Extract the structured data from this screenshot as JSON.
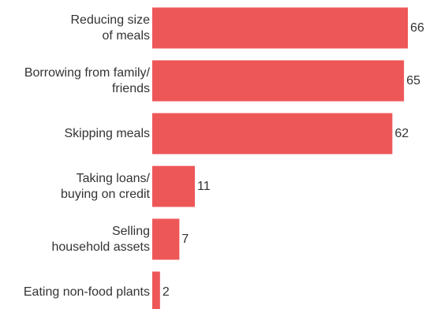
{
  "chart_data": {
    "type": "bar",
    "orientation": "horizontal",
    "title": "",
    "xlabel": "",
    "ylabel": "",
    "categories": [
      [
        "Reducing size",
        "of meals"
      ],
      [
        "Borrowing from family/",
        "friends"
      ],
      [
        "Skipping meals"
      ],
      [
        "Taking loans/",
        "buying on credit"
      ],
      [
        "Selling",
        "household assets"
      ],
      [
        "Eating non-food plants"
      ]
    ],
    "values": [
      66,
      65,
      62,
      11,
      7,
      2
    ],
    "xlim": [
      0,
      66
    ],
    "grid": false,
    "data_labels": true,
    "colors": {
      "bar": "#ee5758",
      "text": "#333333",
      "background": "#ffffff"
    }
  }
}
